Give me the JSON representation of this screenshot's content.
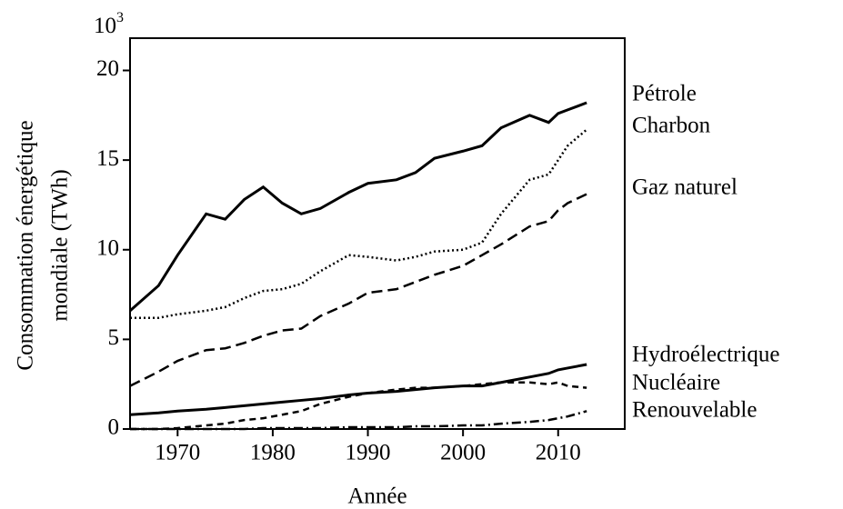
{
  "chart_data": {
    "type": "line",
    "x_label": "Année",
    "y_label": [
      "Consommation énergétique",
      "mondiale (TWh)"
    ],
    "y_multiplier": {
      "base": "10",
      "exponent": "3"
    },
    "x": [
      1965,
      1968,
      1970,
      1973,
      1975,
      1977,
      1979,
      1981,
      1983,
      1985,
      1988,
      1990,
      1993,
      1995,
      1997,
      2000,
      2002,
      2004,
      2007,
      2009,
      2010,
      2011,
      2013
    ],
    "series": [
      {
        "name": "Pétrole",
        "color": "#000000",
        "style": "solid-thick",
        "values": [
          6.6,
          8.0,
          9.7,
          12.0,
          11.7,
          12.8,
          13.5,
          12.6,
          12.0,
          12.3,
          13.2,
          13.7,
          13.9,
          14.3,
          15.1,
          15.5,
          15.8,
          16.8,
          17.5,
          17.1,
          17.6,
          17.8,
          18.2
        ]
      },
      {
        "name": "Charbon",
        "color": "#000000",
        "style": "dotted",
        "values": [
          6.2,
          6.2,
          6.4,
          6.6,
          6.8,
          7.3,
          7.7,
          7.8,
          8.1,
          8.8,
          9.7,
          9.6,
          9.4,
          9.6,
          9.9,
          10.0,
          10.4,
          12.0,
          13.9,
          14.2,
          15.0,
          15.8,
          16.7
        ]
      },
      {
        "name": "Gaz naturel",
        "color": "#000000",
        "style": "dashed",
        "values": [
          2.4,
          3.2,
          3.8,
          4.4,
          4.5,
          4.8,
          5.2,
          5.5,
          5.6,
          6.3,
          7.0,
          7.6,
          7.8,
          8.2,
          8.6,
          9.1,
          9.7,
          10.3,
          11.3,
          11.6,
          12.2,
          12.6,
          13.1
        ]
      },
      {
        "name": "Hydroélectrique",
        "color": "#000000",
        "style": "solid",
        "values": [
          0.8,
          0.9,
          1.0,
          1.1,
          1.2,
          1.3,
          1.4,
          1.5,
          1.6,
          1.7,
          1.9,
          2.0,
          2.1,
          2.2,
          2.3,
          2.4,
          2.4,
          2.6,
          2.9,
          3.1,
          3.3,
          3.4,
          3.6
        ]
      },
      {
        "name": "Nucléaire",
        "color": "#000000",
        "style": "short-dashed",
        "values": [
          0.0,
          0.0,
          0.05,
          0.2,
          0.3,
          0.5,
          0.6,
          0.8,
          1.0,
          1.4,
          1.8,
          2.0,
          2.2,
          2.3,
          2.3,
          2.4,
          2.5,
          2.6,
          2.6,
          2.5,
          2.6,
          2.4,
          2.3
        ]
      },
      {
        "name": "Renouvelable",
        "color": "#000000",
        "style": "dash-dot",
        "values": [
          0,
          0,
          0,
          0,
          0,
          0,
          0.05,
          0.05,
          0.05,
          0.05,
          0.1,
          0.1,
          0.1,
          0.15,
          0.15,
          0.2,
          0.2,
          0.3,
          0.4,
          0.5,
          0.6,
          0.7,
          1.0
        ]
      }
    ],
    "xlim": [
      1965,
      2017
    ],
    "ylim": [
      0,
      21.8
    ],
    "xticks": [
      1970,
      1980,
      1990,
      2000,
      2010
    ],
    "yticks": [
      0,
      5,
      10,
      15,
      20
    ],
    "grid": false
  }
}
